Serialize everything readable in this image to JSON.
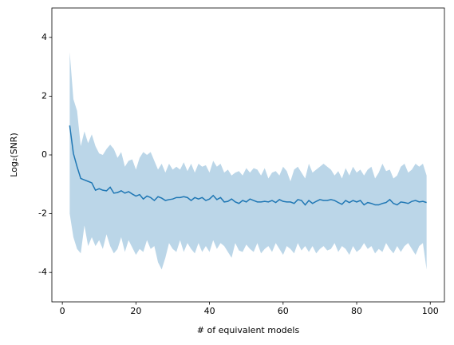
{
  "chart_data": {
    "type": "line_band",
    "xlabel": "# of equivalent models",
    "ylabel": "Log₂(SNR)",
    "color": "#1f77b4",
    "band_opacity": 0.3,
    "xlim": [
      -2.85,
      103.85
    ],
    "ylim": [
      -5,
      5
    ],
    "xticks": [
      0,
      20,
      40,
      60,
      80,
      100
    ],
    "yticks": [
      -4,
      -2,
      0,
      2,
      4
    ],
    "x": [
      2,
      3,
      4,
      5,
      6,
      7,
      8,
      9,
      10,
      11,
      12,
      13,
      14,
      15,
      16,
      17,
      18,
      19,
      20,
      21,
      22,
      23,
      24,
      25,
      26,
      27,
      28,
      29,
      30,
      31,
      32,
      33,
      34,
      35,
      36,
      37,
      38,
      39,
      40,
      41,
      42,
      43,
      44,
      45,
      46,
      47,
      48,
      49,
      50,
      51,
      52,
      53,
      54,
      55,
      56,
      57,
      58,
      59,
      60,
      61,
      62,
      63,
      64,
      65,
      66,
      67,
      68,
      69,
      70,
      71,
      72,
      73,
      74,
      75,
      76,
      77,
      78,
      79,
      80,
      81,
      82,
      83,
      84,
      85,
      86,
      87,
      88,
      89,
      90,
      91,
      92,
      93,
      94,
      95,
      96,
      97,
      98,
      99
    ],
    "values": [
      1.0,
      0.05,
      -0.4,
      -0.8,
      -0.85,
      -0.9,
      -0.95,
      -1.2,
      -1.15,
      -1.2,
      -1.22,
      -1.1,
      -1.3,
      -1.28,
      -1.22,
      -1.3,
      -1.25,
      -1.33,
      -1.4,
      -1.35,
      -1.5,
      -1.4,
      -1.45,
      -1.55,
      -1.42,
      -1.47,
      -1.55,
      -1.52,
      -1.5,
      -1.45,
      -1.45,
      -1.42,
      -1.45,
      -1.55,
      -1.45,
      -1.5,
      -1.45,
      -1.55,
      -1.5,
      -1.38,
      -1.52,
      -1.45,
      -1.6,
      -1.58,
      -1.5,
      -1.6,
      -1.65,
      -1.55,
      -1.6,
      -1.5,
      -1.55,
      -1.6,
      -1.6,
      -1.58,
      -1.6,
      -1.55,
      -1.62,
      -1.52,
      -1.58,
      -1.6,
      -1.6,
      -1.65,
      -1.52,
      -1.55,
      -1.7,
      -1.55,
      -1.65,
      -1.58,
      -1.52,
      -1.55,
      -1.55,
      -1.52,
      -1.55,
      -1.62,
      -1.68,
      -1.55,
      -1.62,
      -1.55,
      -1.6,
      -1.55,
      -1.7,
      -1.62,
      -1.65,
      -1.7,
      -1.7,
      -1.65,
      -1.62,
      -1.52,
      -1.65,
      -1.7,
      -1.6,
      -1.62,
      -1.65,
      -1.58,
      -1.55,
      -1.6,
      -1.58,
      -1.62
    ],
    "upper": [
      3.5,
      1.9,
      1.5,
      0.3,
      0.8,
      0.4,
      0.7,
      0.3,
      0.05,
      0.0,
      0.2,
      0.35,
      0.2,
      -0.1,
      0.1,
      -0.4,
      -0.2,
      -0.15,
      -0.5,
      -0.1,
      0.1,
      0.0,
      0.1,
      -0.2,
      -0.5,
      -0.3,
      -0.6,
      -0.3,
      -0.5,
      -0.4,
      -0.5,
      -0.25,
      -0.55,
      -0.3,
      -0.6,
      -0.3,
      -0.4,
      -0.35,
      -0.6,
      -0.2,
      -0.4,
      -0.3,
      -0.6,
      -0.5,
      -0.7,
      -0.6,
      -0.55,
      -0.7,
      -0.45,
      -0.6,
      -0.45,
      -0.5,
      -0.7,
      -0.45,
      -0.8,
      -0.6,
      -0.55,
      -0.7,
      -0.4,
      -0.55,
      -0.9,
      -0.5,
      -0.4,
      -0.6,
      -0.8,
      -0.3,
      -0.6,
      -0.5,
      -0.4,
      -0.3,
      -0.4,
      -0.5,
      -0.7,
      -0.55,
      -0.8,
      -0.45,
      -0.7,
      -0.4,
      -0.6,
      -0.5,
      -0.7,
      -0.5,
      -0.4,
      -0.8,
      -0.6,
      -0.3,
      -0.55,
      -0.5,
      -0.8,
      -0.7,
      -0.4,
      -0.3,
      -0.6,
      -0.5,
      -0.3,
      -0.4,
      -0.3,
      -0.7
    ],
    "lower": [
      -2.0,
      -2.8,
      -3.2,
      -3.35,
      -2.4,
      -3.1,
      -2.8,
      -3.1,
      -2.9,
      -3.2,
      -2.7,
      -3.1,
      -3.35,
      -3.2,
      -2.8,
      -3.3,
      -2.9,
      -3.15,
      -3.4,
      -3.2,
      -3.3,
      -2.9,
      -3.2,
      -3.1,
      -3.65,
      -3.9,
      -3.5,
      -3.0,
      -3.2,
      -3.3,
      -2.9,
      -3.3,
      -3.0,
      -3.2,
      -3.35,
      -3.0,
      -3.3,
      -3.1,
      -3.3,
      -2.9,
      -3.2,
      -3.0,
      -3.1,
      -3.3,
      -3.5,
      -3.0,
      -3.25,
      -3.3,
      -3.05,
      -3.2,
      -3.3,
      -3.0,
      -3.35,
      -3.2,
      -3.1,
      -3.3,
      -3.0,
      -3.2,
      -3.4,
      -3.1,
      -3.2,
      -3.35,
      -3.0,
      -3.25,
      -3.1,
      -3.3,
      -3.1,
      -3.35,
      -3.2,
      -3.1,
      -3.25,
      -3.2,
      -3.0,
      -3.3,
      -3.1,
      -3.2,
      -3.4,
      -3.1,
      -3.3,
      -3.2,
      -3.0,
      -3.2,
      -3.1,
      -3.35,
      -3.2,
      -3.3,
      -3.0,
      -3.2,
      -3.35,
      -3.1,
      -3.3,
      -3.1,
      -3.0,
      -3.2,
      -3.4,
      -3.1,
      -3.0,
      -3.9
    ]
  }
}
